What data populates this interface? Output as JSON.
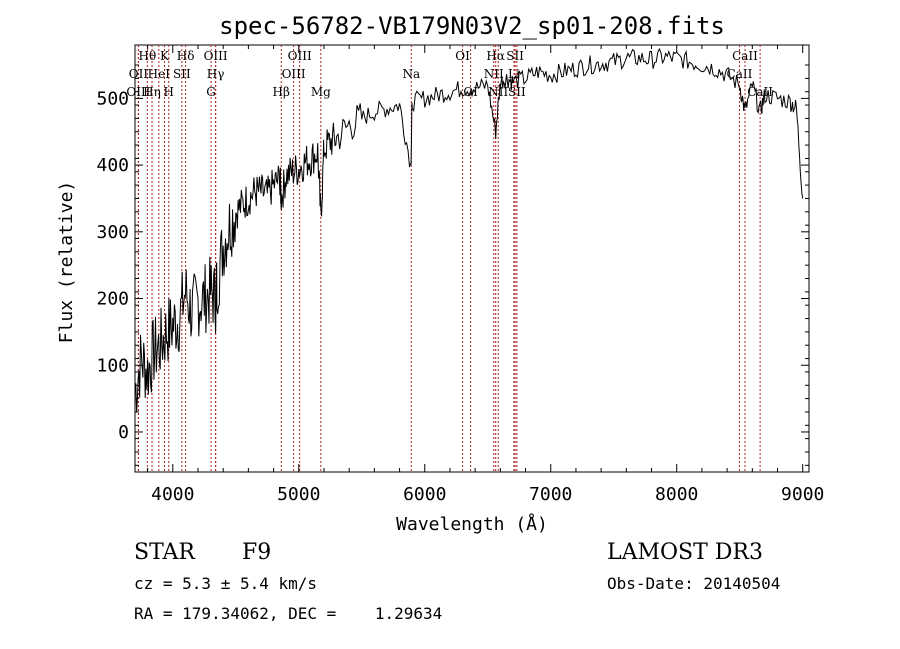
{
  "chart_data": {
    "type": "line",
    "title": "spec-56782-VB179N03V2_sp01-208.fits",
    "xlabel": "Wavelength (Å)",
    "ylabel": "Flux (relative)",
    "xlim": [
      3700,
      9050
    ],
    "ylim": [
      -60,
      580
    ],
    "xticks": [
      4000,
      5000,
      6000,
      7000,
      8000,
      9000
    ],
    "yticks": [
      0,
      100,
      200,
      300,
      400,
      500
    ],
    "grid": false,
    "series": [
      {
        "name": "flux",
        "x": [
          3700,
          3750,
          3800,
          3850,
          3900,
          3950,
          4000,
          4050,
          4100,
          4150,
          4200,
          4250,
          4300,
          4340,
          4350,
          4400,
          4450,
          4500,
          4550,
          4600,
          4650,
          4700,
          4750,
          4800,
          4850,
          4861,
          4900,
          4950,
          5000,
          5050,
          5100,
          5150,
          5175,
          5200,
          5250,
          5300,
          5400,
          5500,
          5600,
          5700,
          5800,
          5890,
          5900,
          6000,
          6100,
          6200,
          6300,
          6400,
          6500,
          6563,
          6600,
          6650,
          6700,
          6800,
          6900,
          7000,
          7100,
          7200,
          7300,
          7400,
          7500,
          7600,
          7700,
          7800,
          7900,
          8000,
          8100,
          8200,
          8300,
          8400,
          8500,
          8542,
          8600,
          8662,
          8700,
          8800,
          8900,
          8950,
          9000
        ],
        "values": [
          60,
          110,
          90,
          120,
          130,
          150,
          160,
          170,
          210,
          180,
          195,
          200,
          210,
          200,
          220,
          280,
          310,
          330,
          340,
          350,
          360,
          360,
          355,
          370,
          380,
          350,
          385,
          390,
          395,
          405,
          410,
          420,
          320,
          425,
          435,
          440,
          460,
          470,
          480,
          485,
          490,
          400,
          495,
          500,
          505,
          510,
          515,
          515,
          520,
          450,
          525,
          530,
          525,
          530,
          540,
          535,
          540,
          545,
          550,
          552,
          555,
          560,
          560,
          558,
          562,
          560,
          555,
          550,
          545,
          535,
          520,
          480,
          520,
          480,
          505,
          500,
          495,
          485,
          350
        ]
      }
    ],
    "line_markers": [
      {
        "label": "Hθ",
        "x": 3798,
        "row": 0
      },
      {
        "label": "OII",
        "x": 3727,
        "row": 1
      },
      {
        "label": "OIII",
        "x": 3727,
        "row": 2
      },
      {
        "label": "Hη",
        "x": 3835,
        "row": 2
      },
      {
        "label": "HeI",
        "x": 3889,
        "row": 1
      },
      {
        "label": "K",
        "x": 3934,
        "row": 0
      },
      {
        "label": "H",
        "x": 3968,
        "row": 2
      },
      {
        "label": "SII",
        "x": 4072,
        "row": 1
      },
      {
        "label": "Hδ",
        "x": 4102,
        "row": 0
      },
      {
        "label": "G",
        "x": 4304,
        "row": 2
      },
      {
        "label": "OIII",
        "x": 4340,
        "row": 0
      },
      {
        "label": "Hγ",
        "x": 4340,
        "row": 1
      },
      {
        "label": "Hβ",
        "x": 4861,
        "row": 2
      },
      {
        "label": "OIII",
        "x": 4959,
        "row": 1
      },
      {
        "label": "OIII",
        "x": 5007,
        "row": 0
      },
      {
        "label": "Mg",
        "x": 5175,
        "row": 2
      },
      {
        "label": "Na",
        "x": 5893,
        "row": 1
      },
      {
        "label": "OI",
        "x": 6300,
        "row": 0
      },
      {
        "label": "OI",
        "x": 6364,
        "row": 2
      },
      {
        "label": "Hα",
        "x": 6563,
        "row": 0
      },
      {
        "label": "NII",
        "x": 6548,
        "row": 1
      },
      {
        "label": "NII",
        "x": 6583,
        "row": 2
      },
      {
        "label": "SII",
        "x": 6717,
        "row": 0
      },
      {
        "label": "Li",
        "x": 6708,
        "row": 1
      },
      {
        "label": "SII",
        "x": 6731,
        "row": 2
      },
      {
        "label": "CaII",
        "x": 8542,
        "row": 0
      },
      {
        "label": "CaII",
        "x": 8498,
        "row": 1
      },
      {
        "label": "CaII",
        "x": 8662,
        "row": 2
      }
    ]
  },
  "info": {
    "class": "STAR",
    "subclass": "F9",
    "cz": "cz = 5.3 ± 5.4 km/s",
    "coords": "RA = 179.34062, DEC =    1.29634",
    "survey": "LAMOST DR3",
    "obs_date": "Obs-Date: 20140504"
  },
  "colors": {
    "line_marker": "#b22222",
    "spectrum": "#000000"
  }
}
